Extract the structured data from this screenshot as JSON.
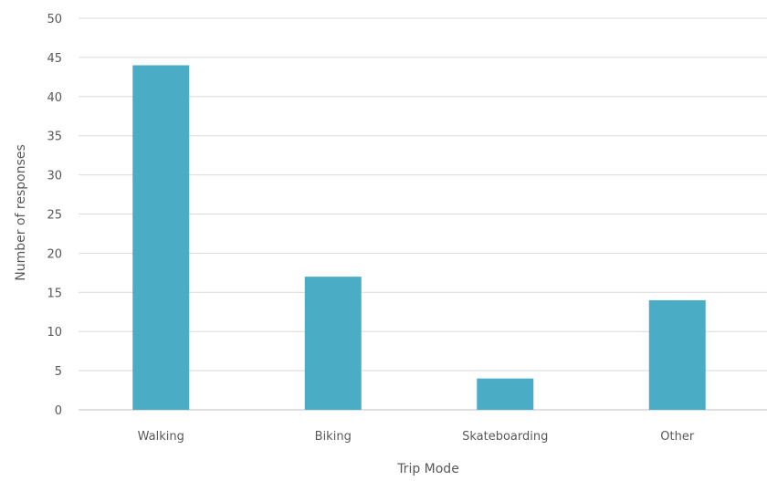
{
  "chart_data": {
    "type": "bar",
    "categories": [
      "Walking",
      "Biking",
      "Skateboarding",
      "Other"
    ],
    "values": [
      44,
      17,
      4,
      14
    ],
    "title": "",
    "xlabel": "Trip Mode",
    "ylabel": "Number  of responses",
    "ylim": [
      0,
      50
    ],
    "yticks": [
      0,
      5,
      10,
      15,
      20,
      25,
      30,
      35,
      40,
      45,
      50
    ],
    "grid": true,
    "bar_color": "#4bacc6"
  }
}
